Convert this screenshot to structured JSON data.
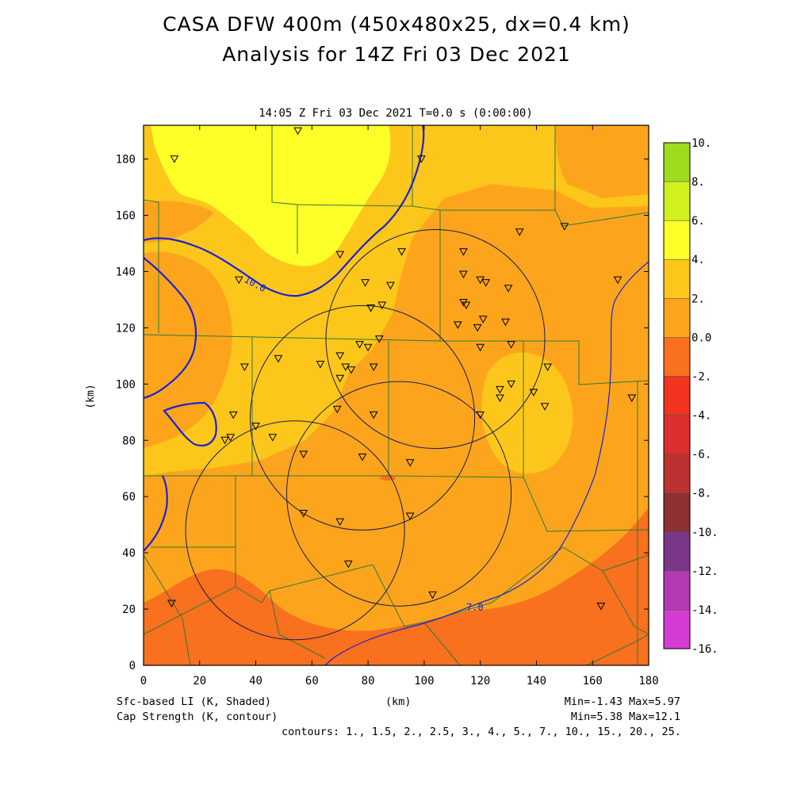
{
  "title_line1": "CASA DFW 400m (450x480x25, dx=0.4 km)",
  "title_line2": "Analysis for 14Z Fri 03 Dec 2021",
  "time_label": "14:05 Z Fri 03 Dec 2021   T=0.0 s (0:00:00)",
  "x_axis_unit": "(km)",
  "y_axis_unit": "(km)",
  "x_ticks": [
    0,
    20,
    40,
    60,
    80,
    100,
    120,
    140,
    160,
    180
  ],
  "y_ticks": [
    0,
    20,
    40,
    60,
    80,
    100,
    120,
    140,
    160,
    180
  ],
  "domain_km": {
    "x": [
      0,
      180
    ],
    "y": [
      0,
      192
    ]
  },
  "colorbar": {
    "labels": [
      "10.",
      "8.",
      "6.",
      "4.",
      "2.",
      "0.0",
      "-2.",
      "-4.",
      "-6.",
      "-8.",
      "-10.",
      "-12.",
      "-14.",
      "-16."
    ],
    "colors_top_to_bottom": [
      "#9edc1e",
      "#d2f01e",
      "#ffff28",
      "#fcc71a",
      "#fca51c",
      "#f9701e",
      "#f2341e",
      "#dd2e30",
      "#bc3230",
      "#8c3034",
      "#7a3688",
      "#b23ab4",
      "#d43cd4"
    ]
  },
  "fields": {
    "shaded_label": "Sfc-based LI (K, Shaded)",
    "contour_label": "Cap Strength (K, contour)",
    "shaded_minmax": "Min=-1.43 Max=5.97",
    "contour_minmax": "Min=5.38 Max=12.1",
    "contours_line": "contours: 1., 1.5, 2., 2.5, 3., 4., 5., 7., 10., 15., 20., 25."
  },
  "contour_labels": [
    "10.0",
    "7.0"
  ],
  "colors": {
    "contour": "#1a22d8",
    "county_lines": "#2f7a3a",
    "radar_rings": "#1a1a50",
    "li_0_2": "#fca51c",
    "li_2_4": "#fcc71a",
    "li_4_6": "#ffff28",
    "li_neg2_0": "#f9701e"
  },
  "radar_rings_km": [
    {
      "center": [
        104,
        116
      ],
      "radius": 39
    },
    {
      "center": [
        78,
        88
      ],
      "radius": 40
    },
    {
      "center": [
        91,
        61
      ],
      "radius": 40
    },
    {
      "center": [
        54,
        48
      ],
      "radius": 39
    }
  ],
  "stations_km": [
    [
      11,
      180
    ],
    [
      55,
      190
    ],
    [
      99,
      180
    ],
    [
      34,
      137
    ],
    [
      70,
      146
    ],
    [
      79,
      136
    ],
    [
      88,
      135
    ],
    [
      92,
      147
    ],
    [
      81,
      127
    ],
    [
      85,
      128
    ],
    [
      114,
      147
    ],
    [
      114,
      139
    ],
    [
      120,
      137
    ],
    [
      122,
      136
    ],
    [
      130,
      134
    ],
    [
      114,
      129
    ],
    [
      115,
      128
    ],
    [
      112,
      121
    ],
    [
      119,
      120
    ],
    [
      121,
      123
    ],
    [
      129,
      122
    ],
    [
      84,
      116
    ],
    [
      77,
      114
    ],
    [
      80,
      113
    ],
    [
      70,
      110
    ],
    [
      72,
      106
    ],
    [
      74,
      105
    ],
    [
      70,
      102
    ],
    [
      63,
      107
    ],
    [
      48,
      109
    ],
    [
      36,
      106
    ],
    [
      82,
      106
    ],
    [
      120,
      113
    ],
    [
      131,
      114
    ],
    [
      144,
      106
    ],
    [
      127,
      98
    ],
    [
      131,
      100
    ],
    [
      127,
      95
    ],
    [
      139,
      97
    ],
    [
      143,
      92
    ],
    [
      174,
      95
    ],
    [
      120,
      89
    ],
    [
      69,
      91
    ],
    [
      82,
      89
    ],
    [
      32,
      89
    ],
    [
      40,
      85
    ],
    [
      31,
      81
    ],
    [
      29,
      80
    ],
    [
      46,
      81
    ],
    [
      57,
      75
    ],
    [
      78,
      74
    ],
    [
      95,
      72
    ],
    [
      57,
      54
    ],
    [
      70,
      51
    ],
    [
      95,
      53
    ],
    [
      73,
      36
    ],
    [
      103,
      25
    ],
    [
      10,
      22
    ],
    [
      163,
      21
    ],
    [
      134,
      154
    ],
    [
      150,
      156
    ],
    [
      169,
      137
    ]
  ]
}
